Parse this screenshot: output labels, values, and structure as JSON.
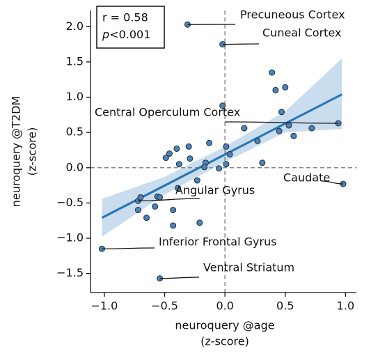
{
  "chart_data": {
    "type": "scatter",
    "xlabel": [
      "neuroquery @age",
      "(z-score)"
    ],
    "ylabel": [
      "neuroquery @T2DM",
      "(z-score)"
    ],
    "stats": {
      "r": "r = 0.58",
      "p": "p<0.001"
    },
    "x": [
      -0.31,
      -0.02,
      -0.02,
      0.39,
      0.42,
      0.5,
      0.47,
      0.53,
      0.45,
      0.57,
      0.72,
      0.94,
      0.16,
      0.27,
      0.31,
      0.98,
      0.01,
      0.04,
      0.01,
      -0.05,
      -0.13,
      -0.16,
      -0.17,
      -0.3,
      -0.29,
      -0.4,
      -0.46,
      -0.49,
      -0.38,
      -0.23,
      -0.39,
      -0.72,
      -0.7,
      -0.56,
      -0.54,
      -0.72,
      -0.58,
      -0.43,
      -0.65,
      -0.43,
      -0.21,
      -1.02,
      -0.54
    ],
    "y": [
      2.03,
      1.75,
      0.88,
      1.35,
      1.1,
      1.14,
      0.79,
      0.6,
      0.52,
      0.45,
      0.56,
      0.63,
      0.56,
      0.38,
      0.07,
      -0.23,
      0.3,
      0.19,
      0.05,
      -0.01,
      0.35,
      0.07,
      0.01,
      0.3,
      0.13,
      0.27,
      0.2,
      0.14,
      0.05,
      -0.18,
      -0.29,
      -0.47,
      -0.42,
      -0.41,
      -0.42,
      -0.6,
      -0.55,
      -0.6,
      -0.71,
      -0.82,
      -0.78,
      -1.15,
      -1.57
    ],
    "point_labels": [
      "Precuneous Cortex",
      "Cuneal Cortex",
      null,
      null,
      null,
      null,
      null,
      null,
      null,
      null,
      null,
      "Central Operculum Cortex",
      null,
      null,
      null,
      "Caudate",
      null,
      null,
      null,
      null,
      null,
      null,
      null,
      null,
      null,
      null,
      null,
      null,
      null,
      null,
      null,
      "Angular Gyrus",
      null,
      null,
      null,
      null,
      null,
      null,
      null,
      null,
      null,
      "Inferior Frontal Gyrus",
      "Ventral Striatum"
    ],
    "color": "#4d82b6",
    "fit": {
      "x": [
        -1.02,
        0.97
      ],
      "y": [
        -0.71,
        1.04
      ],
      "color": "#2a77b4"
    },
    "band": {
      "x": [
        -1.02,
        -0.5,
        0,
        0.5,
        0.97
      ],
      "lower": [
        -0.98,
        -0.38,
        0.08,
        0.5,
        0.55
      ],
      "upper": [
        -0.44,
        -0.13,
        0.3,
        0.8,
        1.55
      ],
      "color": "#c9ddef"
    },
    "reference_lines": {
      "x": 0,
      "y": 0
    },
    "xlim": [
      -1.115,
      1.09
    ],
    "ylim": [
      -1.77,
      2.23
    ],
    "xticks": [
      {
        "value": -1,
        "label": "−1.0"
      },
      {
        "value": -0.5,
        "label": "−0.5"
      },
      {
        "value": 0,
        "label": "0.0"
      },
      {
        "value": 0.5,
        "label": "0.5"
      },
      {
        "value": 1,
        "label": "1.0"
      }
    ],
    "yticks": [
      {
        "value": -1.5,
        "label": "−1.5"
      },
      {
        "value": -1,
        "label": "−1.0"
      },
      {
        "value": -0.5,
        "label": "−0.5"
      },
      {
        "value": 0,
        "label": "0.0"
      },
      {
        "value": 0.5,
        "label": "0.5"
      },
      {
        "value": 1,
        "label": "1.0"
      },
      {
        "value": 1.5,
        "label": "1.5"
      },
      {
        "value": 2,
        "label": "2.0"
      }
    ]
  }
}
